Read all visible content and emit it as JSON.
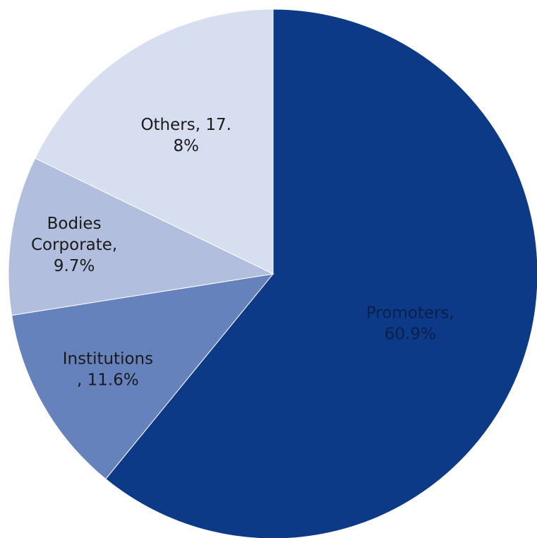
{
  "chart_data": {
    "type": "pie",
    "title": "",
    "start_angle_deg": 0,
    "direction": "clockwise",
    "slices": [
      {
        "name": "Promoters",
        "value": 60.9,
        "color": "#0d3a87",
        "label_color": "#0b1f4d",
        "label_lines": [
          "Promoters,",
          "60.9%"
        ]
      },
      {
        "name": "Institutions",
        "value": 11.6,
        "color": "#6582bd",
        "label_color": "#1a1a1a",
        "label_lines": [
          "Institutions",
          ", 11.6%"
        ]
      },
      {
        "name": "Bodies Corporate",
        "value": 9.7,
        "color": "#b1bedd",
        "label_color": "#1a1a1a",
        "label_lines": [
          "Bodies",
          "Corporate,",
          "9.7%"
        ]
      },
      {
        "name": "Others",
        "value": 17.8,
        "color": "#d7deef",
        "label_color": "#1a1a1a",
        "label_lines": [
          "Others, 17.",
          "8%"
        ]
      }
    ]
  }
}
